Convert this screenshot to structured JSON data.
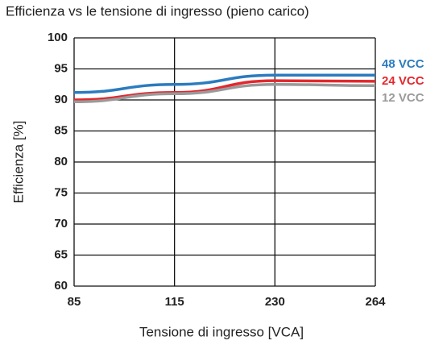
{
  "chart_data": {
    "type": "line",
    "title": "Efficienza vs le tensione di ingresso (pieno carico)",
    "xlabel": "Tensione di ingresso [VCA]",
    "ylabel": "Efficienza [%]",
    "categories": [
      "85",
      "115",
      "230",
      "264"
    ],
    "series": [
      {
        "name": "48 VCC",
        "color": "#2b7bbf",
        "values": [
          91.2,
          92.5,
          94,
          94
        ]
      },
      {
        "name": "24 VCC",
        "color": "#e2282e",
        "values": [
          90,
          91.2,
          93.1,
          93
        ]
      },
      {
        "name": "12 VCC",
        "color": "#9a9a9a",
        "values": [
          89.7,
          91,
          92.5,
          92.3
        ]
      }
    ],
    "ylim": [
      60,
      100
    ],
    "yticks": [
      60,
      65,
      70,
      75,
      80,
      85,
      90,
      95,
      100
    ],
    "grid": true
  }
}
